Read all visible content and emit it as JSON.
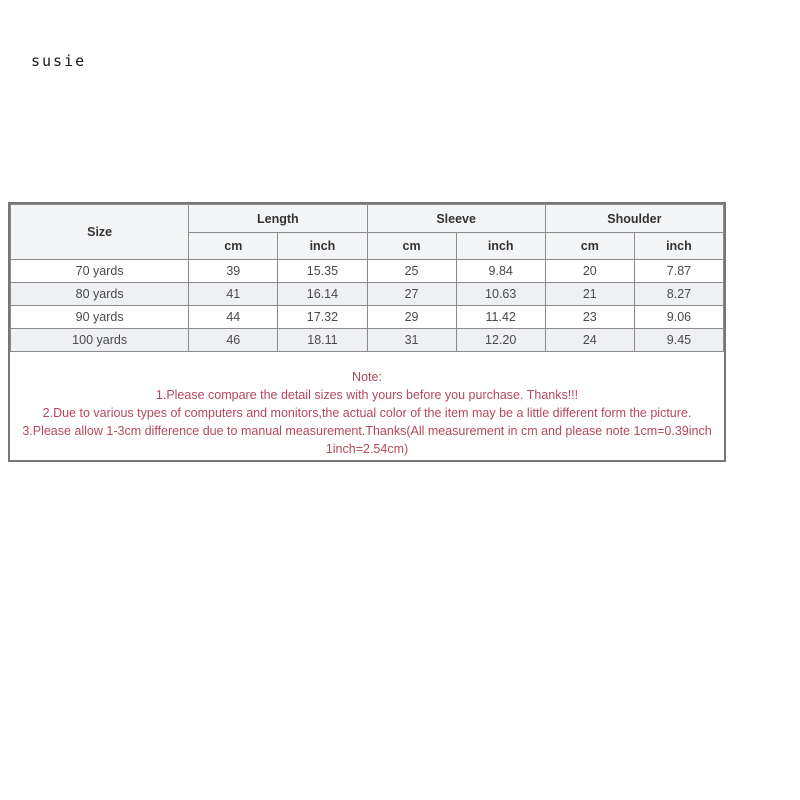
{
  "brand": "susie",
  "table": {
    "col_groups": [
      {
        "label": "Size"
      },
      {
        "label": "Length"
      },
      {
        "label": "Sleeve"
      },
      {
        "label": "Shoulder"
      }
    ],
    "sub_headers": [
      "cm",
      "inch",
      "cm",
      "inch",
      "cm",
      "inch"
    ],
    "rows": [
      {
        "size": "70 yards",
        "values": [
          "39",
          "15.35",
          "25",
          "9.84",
          "20",
          "7.87"
        ]
      },
      {
        "size": "80 yards",
        "values": [
          "41",
          "16.14",
          "27",
          "10.63",
          "21",
          "8.27"
        ]
      },
      {
        "size": "90 yards",
        "values": [
          "44",
          "17.32",
          "29",
          "11.42",
          "23",
          "9.06"
        ]
      },
      {
        "size": "100 yards",
        "values": [
          "46",
          "18.11",
          "31",
          "12.20",
          "24",
          "9.45"
        ]
      }
    ]
  },
  "note": {
    "title": "Note:",
    "lines": [
      "1.Please compare the detail sizes with yours before you purchase. Thanks!!!",
      "2.Due to various types of computers and monitors,the actual color of the item may be a little different form the picture.",
      "3.Please allow 1-3cm difference due to manual measurement.Thanks(All measurement in cm and please note 1cm=0.39inch",
      "1inch=2.54cm)"
    ]
  },
  "colors": {
    "accent": "#b5495b",
    "border": "#8b8b8b",
    "header-bg": "#f4f5f7",
    "stripe-bg": "#eef0f4"
  }
}
